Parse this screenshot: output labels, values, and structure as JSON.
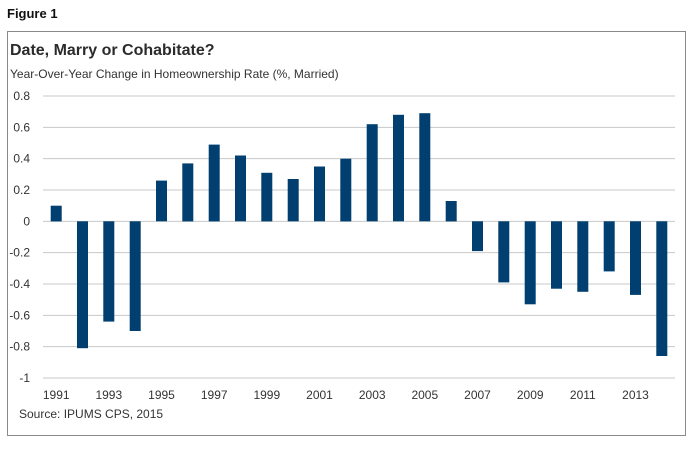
{
  "figure_label": "Figure 1",
  "source": "Source: IPUMS CPS, 2015",
  "colors": {
    "bar": "#003f6f",
    "grid": "#c8c8c8",
    "frame": "#8a8a8a"
  },
  "chart_data": {
    "type": "bar",
    "title": "Date, Marry or Cohabitate?",
    "subtitle": "Year-Over-Year Change in Homeownership Rate (%, Married)",
    "xlabel": "",
    "ylabel": "",
    "ylim": [
      -1,
      0.8
    ],
    "yticks": [
      0.8,
      0.6,
      0.4,
      0.2,
      0,
      -0.2,
      -0.4,
      -0.6,
      -0.8,
      -1
    ],
    "ytick_labels": [
      "0.8",
      "0.6",
      "0.4",
      "0.2",
      "0",
      "-0.2",
      "-0.4",
      "-0.6",
      "-0.8",
      "-1"
    ],
    "grid": true,
    "categories": [
      "1991",
      "1992",
      "1993",
      "1994",
      "1995",
      "1996",
      "1997",
      "1998",
      "1999",
      "2000",
      "2001",
      "2002",
      "2003",
      "2004",
      "2005",
      "2006",
      "2007",
      "2008",
      "2009",
      "2010",
      "2011",
      "2012",
      "2013",
      "2014"
    ],
    "xtick_labels": [
      "1991",
      "1993",
      "1995",
      "1997",
      "1999",
      "2001",
      "2003",
      "2005",
      "2007",
      "2009",
      "2011",
      "2013"
    ],
    "values": [
      0.1,
      -0.81,
      -0.64,
      -0.7,
      0.26,
      0.37,
      0.49,
      0.42,
      0.31,
      0.27,
      0.35,
      0.4,
      0.62,
      0.68,
      0.69,
      0.13,
      -0.19,
      -0.39,
      -0.53,
      -0.43,
      -0.45,
      -0.32,
      -0.47,
      -0.86
    ]
  }
}
